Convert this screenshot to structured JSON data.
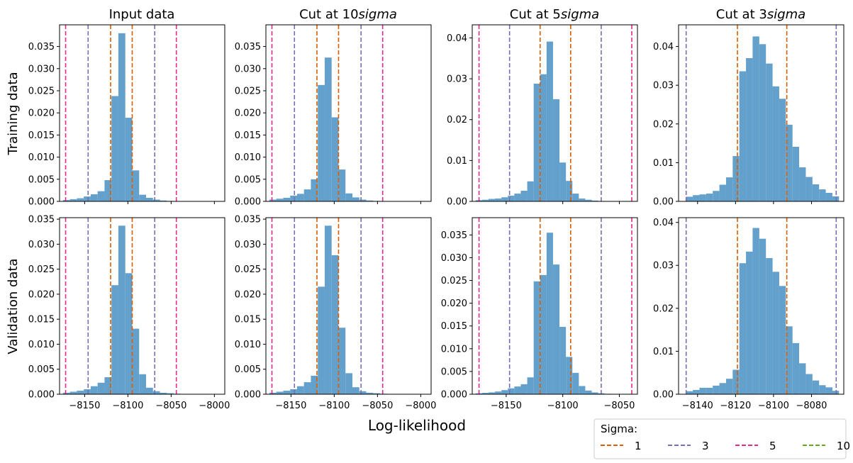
{
  "figure": {
    "xlabel": "Log-likelihood",
    "row_labels": [
      "Training data",
      "Validation data"
    ],
    "column_titles": [
      {
        "text": "Input data",
        "italic": ""
      },
      {
        "text": "Cut at 10",
        "italic": "sigma"
      },
      {
        "text": "Cut at 5",
        "italic": "sigma"
      },
      {
        "text": "Cut at 3",
        "italic": "sigma"
      }
    ],
    "legend": {
      "title": "Sigma:",
      "placement": "bottom-right",
      "entries": [
        {
          "label": "1",
          "color": "#d95f02"
        },
        {
          "label": "3",
          "color": "#7570b3"
        },
        {
          "label": "5",
          "color": "#e7298a"
        },
        {
          "label": "10",
          "color": "#66a61e"
        }
      ]
    },
    "bar_color": "#63a0cb"
  },
  "chart_data": [
    {
      "type": "bar",
      "row": "Training data",
      "col": "Input data",
      "xlim": [
        -8179,
        -7988
      ],
      "ylim": [
        0,
        0.0399
      ],
      "xticks": [],
      "xtick_labels": [],
      "yticks": [
        0,
        0.005,
        0.01,
        0.015,
        0.02,
        0.025,
        0.03,
        0.035
      ],
      "ytick_labels": [
        "0.000",
        "0.005",
        "0.010",
        "0.015",
        "0.020",
        "0.025",
        "0.030",
        "0.035"
      ],
      "bin_edges": [
        -8175,
        -8167,
        -8159,
        -8151,
        -8143,
        -8135,
        -8127,
        -8119,
        -8111,
        -8103,
        -8095,
        -8087,
        -8079,
        -8071,
        -8063,
        -8055,
        -8047,
        -8039
      ],
      "values": [
        0.0003,
        0.0005,
        0.0007,
        0.0011,
        0.0016,
        0.0023,
        0.0048,
        0.0238,
        0.038,
        0.0189,
        0.007,
        0.0015,
        0.0008,
        0.0004,
        0.0002,
        0.0001,
        5e-05
      ],
      "vlines": [
        {
          "sigma": "1",
          "x": [
            -8120,
            -8095
          ]
        },
        {
          "sigma": "3",
          "x": [
            -8146,
            -8069
          ]
        },
        {
          "sigma": "5",
          "x": [
            -8172,
            -8044
          ]
        }
      ]
    },
    {
      "type": "bar",
      "row": "Training data",
      "col": "Cut at 10sigma",
      "xlim": [
        -8179,
        -7988
      ],
      "ylim": [
        0,
        0.0399
      ],
      "xticks": [],
      "xtick_labels": [],
      "yticks": [
        0,
        0.005,
        0.01,
        0.015,
        0.02,
        0.025,
        0.03,
        0.035
      ],
      "ytick_labels": [
        "0.000",
        "0.005",
        "0.010",
        "0.015",
        "0.020",
        "0.025",
        "0.030",
        "0.035"
      ],
      "bin_edges": [
        -8175,
        -8167,
        -8159,
        -8151,
        -8143,
        -8135,
        -8127,
        -8119,
        -8111,
        -8103,
        -8095,
        -8087,
        -8079,
        -8071,
        -8063,
        -8055,
        -8047,
        -8039
      ],
      "values": [
        0.0004,
        0.0006,
        0.0008,
        0.0013,
        0.0017,
        0.0027,
        0.005,
        0.0263,
        0.0325,
        0.019,
        0.0072,
        0.0018,
        0.0009,
        0.0004,
        0.0002,
        0.0001,
        5e-05
      ],
      "vlines": [
        {
          "sigma": "1",
          "x": [
            -8120,
            -8095
          ]
        },
        {
          "sigma": "3",
          "x": [
            -8146,
            -8069
          ]
        },
        {
          "sigma": "5",
          "x": [
            -8172,
            -8044
          ]
        }
      ]
    },
    {
      "type": "bar",
      "row": "Training data",
      "col": "Cut at 5sigma",
      "xlim": [
        -8180,
        -8034
      ],
      "ylim": [
        0,
        0.0432
      ],
      "xticks": [],
      "xtick_labels": [],
      "yticks": [
        0,
        0.01,
        0.02,
        0.03,
        0.04
      ],
      "ytick_labels": [
        "0.00",
        "0.01",
        "0.02",
        "0.03",
        "0.04"
      ],
      "bin_edges": [
        -8177,
        -8171.3,
        -8165.6,
        -8159.9,
        -8154.2,
        -8148.5,
        -8142.8,
        -8137.1,
        -8131.4,
        -8125.7,
        -8120,
        -8114.3,
        -8108.6,
        -8102.9,
        -8097.2,
        -8091.5,
        -8085.8,
        -8080.1,
        -8074.4,
        -8068.7,
        -8063,
        -8057.3,
        -8051.6,
        -8045.9,
        -8040.2
      ],
      "values": [
        0.0003,
        0.0004,
        0.0006,
        0.0007,
        0.001,
        0.0014,
        0.0019,
        0.0026,
        0.0049,
        0.0288,
        0.0311,
        0.0391,
        0.025,
        0.0095,
        0.005,
        0.0019,
        0.0007,
        0.0004,
        0.0002,
        0.0001,
        5e-05,
        5e-05,
        3e-05,
        2e-05
      ],
      "vlines": [
        {
          "sigma": "1",
          "x": [
            -8120,
            -8093
          ]
        },
        {
          "sigma": "3",
          "x": [
            -8147,
            -8066
          ]
        },
        {
          "sigma": "5",
          "x": [
            -8174,
            -8039
          ]
        }
      ]
    },
    {
      "type": "bar",
      "row": "Training data",
      "col": "Cut at 3sigma",
      "xlim": [
        -8150,
        -8063
      ],
      "ylim": [
        0,
        0.0456
      ],
      "xticks": [],
      "xtick_labels": [],
      "yticks": [
        0,
        0.01,
        0.02,
        0.03,
        0.04
      ],
      "ytick_labels": [
        "0.00",
        "0.01",
        "0.02",
        "0.03",
        "0.04"
      ],
      "bin_edges": [
        -8146,
        -8142.5,
        -8139,
        -8135.5,
        -8132,
        -8128.5,
        -8125,
        -8121.5,
        -8118,
        -8114.5,
        -8111,
        -8107.5,
        -8104,
        -8100.5,
        -8097,
        -8093.5,
        -8090,
        -8086.5,
        -8083,
        -8079.5,
        -8076,
        -8072.5,
        -8069,
        -8065.5
      ],
      "values": [
        0.0012,
        0.0016,
        0.0018,
        0.002,
        0.0027,
        0.0043,
        0.0062,
        0.0117,
        0.0336,
        0.037,
        0.0426,
        0.0406,
        0.0356,
        0.0297,
        0.0265,
        0.0198,
        0.0141,
        0.0088,
        0.0063,
        0.0044,
        0.0031,
        0.0022,
        0.0013,
        0.0005
      ],
      "vlines": [
        {
          "sigma": "1",
          "x": [
            -8119,
            -8093
          ]
        },
        {
          "sigma": "3",
          "x": [
            -8146,
            -8067
          ]
        }
      ]
    },
    {
      "type": "bar",
      "row": "Validation data",
      "col": "Input data",
      "xlim": [
        -8179,
        -7988
      ],
      "ylim": [
        0,
        0.0353
      ],
      "xticks": [
        -8150,
        -8100,
        -8050,
        -8000
      ],
      "xtick_labels": [
        "−8150",
        "−8100",
        "−8050",
        "−8000"
      ],
      "yticks": [
        0,
        0.005,
        0.01,
        0.015,
        0.02,
        0.025,
        0.03,
        0.035
      ],
      "ytick_labels": [
        "0.000",
        "0.005",
        "0.010",
        "0.015",
        "0.020",
        "0.025",
        "0.030",
        "0.035"
      ],
      "bin_edges": [
        -8175,
        -8167,
        -8159,
        -8151,
        -8143,
        -8135,
        -8127,
        -8119,
        -8111,
        -8103,
        -8095,
        -8087,
        -8079,
        -8071,
        -8063,
        -8055,
        -8047,
        -8039
      ],
      "values": [
        0.0003,
        0.0005,
        0.0007,
        0.001,
        0.0016,
        0.0023,
        0.0034,
        0.0218,
        0.0337,
        0.0242,
        0.0131,
        0.004,
        0.0013,
        0.0006,
        0.0003,
        0.0002,
        0.0001
      ],
      "vlines": [
        {
          "sigma": "1",
          "x": [
            -8120,
            -8095
          ]
        },
        {
          "sigma": "3",
          "x": [
            -8146,
            -8069
          ]
        },
        {
          "sigma": "5",
          "x": [
            -8172,
            -8044
          ]
        }
      ]
    },
    {
      "type": "bar",
      "row": "Validation data",
      "col": "Cut at 10sigma",
      "xlim": [
        -8179,
        -7988
      ],
      "ylim": [
        0,
        0.0353
      ],
      "xticks": [
        -8150,
        -8100,
        -8050,
        -8000
      ],
      "xtick_labels": [
        "−8150",
        "−8100",
        "−8050",
        "−8000"
      ],
      "yticks": [
        0,
        0.005,
        0.01,
        0.015,
        0.02,
        0.025,
        0.03,
        0.035
      ],
      "ytick_labels": [
        "0.000",
        "0.005",
        "0.010",
        "0.015",
        "0.020",
        "0.025",
        "0.030",
        "0.035"
      ],
      "bin_edges": [
        -8175,
        -8167,
        -8159,
        -8151,
        -8143,
        -8135,
        -8127,
        -8119,
        -8111,
        -8103,
        -8095,
        -8087,
        -8079,
        -8071,
        -8063,
        -8055,
        -8047,
        -8039
      ],
      "values": [
        0.0003,
        0.0005,
        0.0007,
        0.001,
        0.0016,
        0.0024,
        0.0037,
        0.0215,
        0.0337,
        0.0278,
        0.0133,
        0.0042,
        0.0014,
        0.0006,
        0.0003,
        0.0002,
        0.0001
      ],
      "vlines": [
        {
          "sigma": "1",
          "x": [
            -8120,
            -8095
          ]
        },
        {
          "sigma": "3",
          "x": [
            -8146,
            -8069
          ]
        },
        {
          "sigma": "5",
          "x": [
            -8172,
            -8044
          ]
        }
      ]
    },
    {
      "type": "bar",
      "row": "Validation data",
      "col": "Cut at 5sigma",
      "xlim": [
        -8180,
        -8034
      ],
      "ylim": [
        0,
        0.0388
      ],
      "xticks": [
        -8150,
        -8100,
        -8050
      ],
      "xtick_labels": [
        "−8150",
        "−8100",
        "−8050"
      ],
      "yticks": [
        0,
        0.005,
        0.01,
        0.015,
        0.02,
        0.025,
        0.03,
        0.035
      ],
      "ytick_labels": [
        "0.000",
        "0.005",
        "0.010",
        "0.015",
        "0.020",
        "0.025",
        "0.030",
        "0.035"
      ],
      "bin_edges": [
        -8177,
        -8171.3,
        -8165.6,
        -8159.9,
        -8154.2,
        -8148.5,
        -8142.8,
        -8137.1,
        -8131.4,
        -8125.7,
        -8120,
        -8114.3,
        -8108.6,
        -8102.9,
        -8097.2,
        -8091.5,
        -8085.8,
        -8080.1,
        -8074.4,
        -8068.7,
        -8063,
        -8057.3,
        -8051.6,
        -8045.9,
        -8040.2
      ],
      "values": [
        0.0002,
        0.0003,
        0.0004,
        0.0006,
        0.0009,
        0.0013,
        0.0017,
        0.0022,
        0.0037,
        0.0248,
        0.0262,
        0.0355,
        0.0285,
        0.0148,
        0.0082,
        0.0047,
        0.0018,
        0.0008,
        0.0004,
        0.0002,
        0.0001,
        8e-05,
        5e-05,
        3e-05
      ],
      "vlines": [
        {
          "sigma": "1",
          "x": [
            -8120,
            -8093
          ]
        },
        {
          "sigma": "3",
          "x": [
            -8147,
            -8066
          ]
        },
        {
          "sigma": "5",
          "x": [
            -8174,
            -8039
          ]
        }
      ]
    },
    {
      "type": "bar",
      "row": "Validation data",
      "col": "Cut at 3sigma",
      "xlim": [
        -8150,
        -8063
      ],
      "ylim": [
        0,
        0.0411
      ],
      "xticks": [
        -8140,
        -8120,
        -8100,
        -8080
      ],
      "xtick_labels": [
        "−8140",
        "−8120",
        "−8100",
        "−8080"
      ],
      "yticks": [
        0,
        0.01,
        0.02,
        0.03,
        0.04
      ],
      "ytick_labels": [
        "0.00",
        "0.01",
        "0.02",
        "0.03",
        "0.04"
      ],
      "bin_edges": [
        -8146,
        -8142.5,
        -8139,
        -8135.5,
        -8132,
        -8128.5,
        -8125,
        -8121.5,
        -8118,
        -8114.5,
        -8111,
        -8107.5,
        -8104,
        -8100.5,
        -8097,
        -8093.5,
        -8090,
        -8086.5,
        -8083,
        -8079.5,
        -8076,
        -8072.5,
        -8069,
        -8065.5
      ],
      "values": [
        0.0007,
        0.001,
        0.0015,
        0.0015,
        0.002,
        0.0026,
        0.0036,
        0.0057,
        0.0305,
        0.0332,
        0.0387,
        0.0362,
        0.0317,
        0.0285,
        0.0252,
        0.0158,
        0.0119,
        0.0072,
        0.0047,
        0.0032,
        0.0021,
        0.0016,
        0.0008,
        0.0003
      ],
      "vlines": [
        {
          "sigma": "1",
          "x": [
            -8119,
            -8093
          ]
        },
        {
          "sigma": "3",
          "x": [
            -8146,
            -8067
          ]
        }
      ]
    }
  ]
}
